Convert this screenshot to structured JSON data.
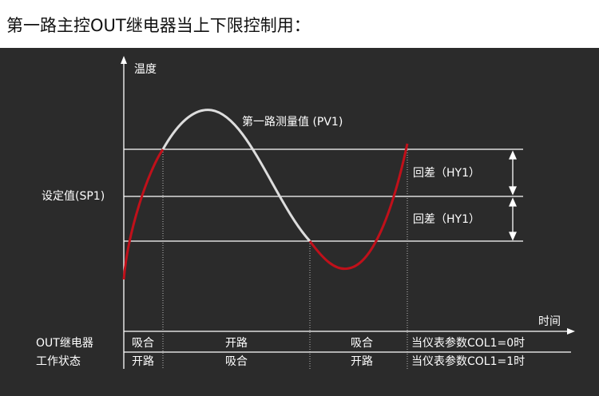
{
  "header": {
    "title": "第一路主控OUT继电器当上下限控制用："
  },
  "diagram": {
    "y_axis_label": "温度",
    "x_axis_label": "时间",
    "curve_label": "第一路测量值 (PV1)",
    "setpoint_label": "设定值(SP1)",
    "hysteresis_labels": [
      "回差（HY1）",
      "回差（HY1）"
    ]
  },
  "table": {
    "header": [
      "OUT继电器",
      "工作状态"
    ],
    "rows": [
      [
        "吸合",
        "开路",
        "吸合",
        "当仪表参数COL1=0时"
      ],
      [
        "开路",
        "吸合",
        "开路",
        "当仪表参数COL1=1时"
      ]
    ]
  }
}
